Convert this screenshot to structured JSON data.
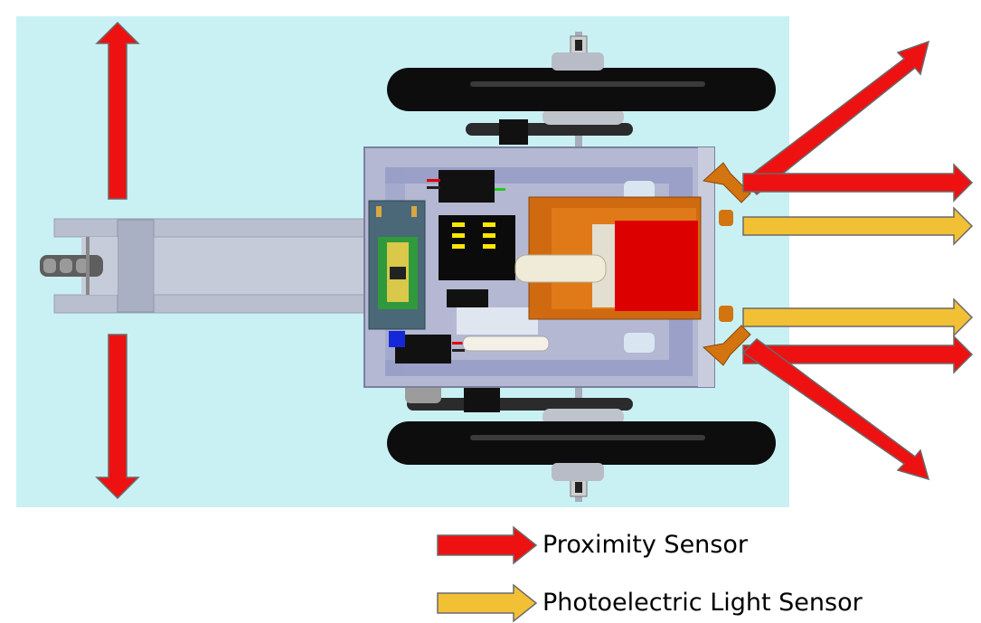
{
  "colors": {
    "background_panel": "#c8f2f4",
    "proximity_arrow": "#ee1111",
    "photo_arrow": "#f2c035",
    "arrow_outline": "#6a6a6a",
    "wheel": "#111111",
    "chassis": "#9aa0c8",
    "sensor_housing": "#d06a10",
    "battery_block": "#dd0000",
    "controller_board": "#2f9a3b"
  },
  "diagram": {
    "subject": "robot-chassis-top-view",
    "components": [
      "wheel",
      "wheel",
      "chassis-plate",
      "controller-board",
      "motor-driver",
      "gripper-assembly",
      "caster-arm"
    ]
  },
  "legend": {
    "items": [
      {
        "label": "Proximity Sensor",
        "color_key": "proximity_arrow"
      },
      {
        "label": "Photoelectric Light Sensor",
        "color_key": "photo_arrow"
      }
    ]
  }
}
